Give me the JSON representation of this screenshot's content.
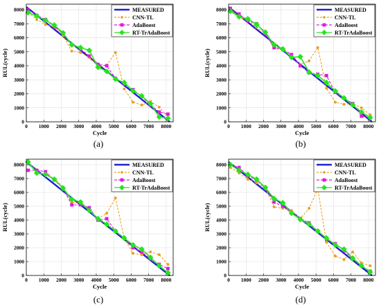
{
  "figure": {
    "panel_labels": [
      "(a)",
      "(b)",
      "(c)",
      "(d)"
    ]
  },
  "style": {
    "colors": {
      "MEASURED": "#1f1fd6",
      "CNN-TL": "#e8a023",
      "AdaBoost": "#e019e0",
      "RT-TrAdaBoost": "#27e41f"
    },
    "markers": {
      "CNN-TL": "circle",
      "AdaBoost": "square",
      "RT-TrAdaBoost": "diamond"
    }
  },
  "chart_data": [
    {
      "type": "line",
      "panel": "(a)",
      "xlabel": "Cycle",
      "ylabel": "RUL(cycle)",
      "xlim": [
        0,
        8400
      ],
      "ylim": [
        0,
        8400
      ],
      "xticks": [
        0,
        1000,
        2000,
        3000,
        4000,
        5000,
        6000,
        7000,
        8000
      ],
      "yticks": [
        0,
        1000,
        2000,
        3000,
        4000,
        5000,
        6000,
        7000,
        8000
      ],
      "grid": true,
      "legend_position": "top-right",
      "series": [
        {
          "name": "MEASURED",
          "x": [
            0,
            8200
          ],
          "y": [
            8200,
            0
          ]
        },
        {
          "name": "CNN-TL",
          "x": [
            100,
            600,
            1100,
            1600,
            2100,
            2600,
            3100,
            3600,
            4100,
            4600,
            5100,
            5600,
            6100,
            6600,
            7100,
            7600,
            8100
          ],
          "y": [
            7800,
            7300,
            6950,
            6750,
            6150,
            5050,
            4950,
            4600,
            3950,
            4050,
            4950,
            2350,
            1400,
            1200,
            1450,
            1050,
            300
          ]
        },
        {
          "name": "AdaBoost",
          "x": [
            100,
            600,
            1100,
            1600,
            2100,
            2600,
            3100,
            3600,
            4100,
            4600,
            5100,
            5600,
            6100,
            6600,
            7100,
            7600,
            8100
          ],
          "y": [
            8000,
            7600,
            7300,
            6800,
            6300,
            5500,
            5200,
            4700,
            4100,
            4000,
            3100,
            2700,
            2300,
            1800,
            1200,
            700,
            550
          ]
        },
        {
          "name": "RT-TrAdaBoost",
          "x": [
            100,
            600,
            1100,
            1600,
            2100,
            2600,
            3100,
            3600,
            4100,
            4600,
            5100,
            5600,
            6100,
            6600,
            7100,
            7600,
            8100
          ],
          "y": [
            7800,
            7550,
            7250,
            6900,
            6350,
            5500,
            5300,
            5100,
            3900,
            3600,
            3050,
            2800,
            2200,
            1850,
            1300,
            350,
            250
          ]
        }
      ]
    },
    {
      "type": "line",
      "panel": "(b)",
      "xlabel": "Cycle",
      "ylabel": "RUL(cycle)",
      "xlim": [
        0,
        8400
      ],
      "ylim": [
        0,
        8400
      ],
      "xticks": [
        0,
        1000,
        2000,
        3000,
        4000,
        5000,
        6000,
        7000,
        8000
      ],
      "yticks": [
        0,
        1000,
        2000,
        3000,
        4000,
        5000,
        6000,
        7000,
        8000
      ],
      "grid": true,
      "legend_position": "top-right",
      "series": [
        {
          "name": "MEASURED",
          "x": [
            0,
            8200
          ],
          "y": [
            8200,
            0
          ]
        },
        {
          "name": "CNN-TL",
          "x": [
            100,
            600,
            1100,
            1600,
            2100,
            2600,
            3100,
            3600,
            4100,
            4600,
            5100,
            5600,
            6100,
            6600,
            7100,
            7600,
            8100
          ],
          "y": [
            8000,
            7500,
            7200,
            6750,
            6300,
            5250,
            5100,
            4800,
            4100,
            4350,
            5300,
            2400,
            1400,
            1250,
            1300,
            1000,
            500
          ]
        },
        {
          "name": "AdaBoost",
          "x": [
            100,
            600,
            1100,
            1600,
            2100,
            2600,
            3100,
            3600,
            4100,
            4600,
            5100,
            5600,
            6100,
            6600,
            7100,
            7600,
            8100
          ],
          "y": [
            8100,
            7700,
            7200,
            7000,
            6300,
            5300,
            5200,
            4800,
            4000,
            3500,
            3400,
            3300,
            2100,
            1700,
            1300,
            400,
            300
          ]
        },
        {
          "name": "RT-TrAdaBoost",
          "x": [
            100,
            600,
            1100,
            1600,
            2100,
            2600,
            3100,
            3600,
            4100,
            4600,
            5100,
            5600,
            6100,
            6600,
            7100,
            7600,
            8100
          ],
          "y": [
            7900,
            7500,
            7350,
            6950,
            6400,
            5500,
            5200,
            4600,
            4650,
            3550,
            3300,
            2800,
            2200,
            1700,
            1200,
            700,
            300
          ]
        }
      ]
    },
    {
      "type": "line",
      "panel": "(c)",
      "xlabel": "Cycle",
      "ylabel": "RUL(cycle)",
      "xlim": [
        0,
        8400
      ],
      "ylim": [
        0,
        8400
      ],
      "xticks": [
        0,
        1000,
        2000,
        3000,
        4000,
        5000,
        6000,
        7000,
        8000
      ],
      "yticks": [
        0,
        1000,
        2000,
        3000,
        4000,
        5000,
        6000,
        7000,
        8000
      ],
      "grid": true,
      "legend_position": "top-right",
      "series": [
        {
          "name": "MEASURED",
          "x": [
            0,
            8200
          ],
          "y": [
            8200,
            0
          ]
        },
        {
          "name": "CNN-TL",
          "x": [
            100,
            600,
            1100,
            1600,
            2100,
            2600,
            3100,
            3600,
            4100,
            4600,
            5100,
            5600,
            6100,
            6600,
            7100,
            7600,
            8100
          ],
          "y": [
            8200,
            7500,
            7300,
            7000,
            6400,
            5300,
            5200,
            4700,
            4100,
            4500,
            5600,
            2700,
            1600,
            1500,
            1700,
            1500,
            800
          ]
        },
        {
          "name": "AdaBoost",
          "x": [
            100,
            600,
            1100,
            1600,
            2100,
            2600,
            3100,
            3600,
            4100,
            4600,
            5100,
            5600,
            6100,
            6600,
            7100,
            7600,
            8100
          ],
          "y": [
            7600,
            7600,
            7500,
            6900,
            6300,
            5100,
            5100,
            4900,
            4000,
            4100,
            3200,
            2700,
            2000,
            1700,
            1200,
            800,
            500
          ]
        },
        {
          "name": "RT-TrAdaBoost",
          "x": [
            100,
            600,
            1100,
            1600,
            2100,
            2600,
            3100,
            3600,
            4100,
            4600,
            5100,
            5600,
            6100,
            6600,
            7100,
            7600,
            8100
          ],
          "y": [
            8200,
            7400,
            7300,
            6950,
            6300,
            5500,
            5300,
            4700,
            4100,
            3700,
            3200,
            2700,
            2200,
            1900,
            1300,
            700,
            200
          ]
        }
      ]
    },
    {
      "type": "line",
      "panel": "(d)",
      "xlabel": "Cycle",
      "ylabel": "RUL(cycle)",
      "xlim": [
        0,
        8400
      ],
      "ylim": [
        0,
        8400
      ],
      "xticks": [
        0,
        1000,
        2000,
        3000,
        4000,
        5000,
        6000,
        7000,
        8000
      ],
      "yticks": [
        0,
        1000,
        2000,
        3000,
        4000,
        5000,
        6000,
        7000,
        8000
      ],
      "grid": true,
      "legend_position": "top-right",
      "series": [
        {
          "name": "MEASURED",
          "x": [
            0,
            8200
          ],
          "y": [
            8200,
            0
          ]
        },
        {
          "name": "CNN-TL",
          "x": [
            100,
            600,
            1100,
            1600,
            2100,
            2600,
            3100,
            3600,
            4100,
            4600,
            5100,
            5600,
            6100,
            6600,
            7100,
            7600,
            8100
          ],
          "y": [
            7800,
            7400,
            6950,
            6700,
            6300,
            4950,
            4850,
            4700,
            4100,
            4850,
            6250,
            2400,
            1400,
            1150,
            1700,
            900,
            700
          ]
        },
        {
          "name": "AdaBoost",
          "x": [
            100,
            600,
            1100,
            1600,
            2100,
            2600,
            3100,
            3600,
            4100,
            4600,
            5100,
            5600,
            6100,
            6600,
            7100,
            7600,
            8100
          ],
          "y": [
            8000,
            7800,
            7200,
            6900,
            6300,
            5300,
            5000,
            4500,
            4100,
            3800,
            3200,
            2600,
            2300,
            1800,
            1200,
            700,
            300
          ]
        },
        {
          "name": "RT-TrAdaBoost",
          "x": [
            100,
            600,
            1100,
            1600,
            2100,
            2600,
            3100,
            3600,
            4100,
            4600,
            5100,
            5600,
            6100,
            6600,
            7100,
            7600,
            8100
          ],
          "y": [
            8000,
            7600,
            7300,
            6950,
            6350,
            5550,
            5250,
            4500,
            4050,
            3700,
            3200,
            2700,
            2200,
            1900,
            1250,
            700,
            250
          ]
        }
      ]
    }
  ]
}
